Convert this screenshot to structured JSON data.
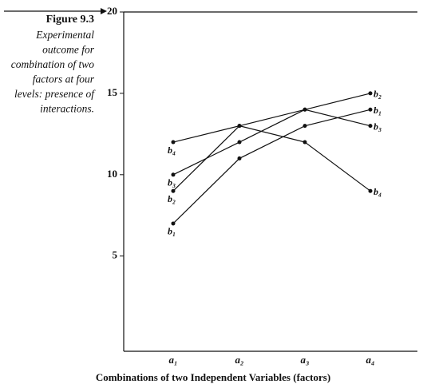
{
  "chart_data": {
    "type": "line",
    "figure_label": "Figure 9.3",
    "caption_lines": [
      "Experimental",
      "outcome for",
      "combination of two",
      "factors at four",
      "levels: presence of",
      "interactions."
    ],
    "xlabel": "Combinations of two Independent Variables (factors)",
    "categories": [
      "a₁",
      "a₂",
      "a₃",
      "a₄"
    ],
    "series": [
      {
        "name": "b₁",
        "color": "#111111",
        "values": [
          7,
          11,
          13,
          14
        ]
      },
      {
        "name": "b₂",
        "color": "#111111",
        "values": [
          9,
          13,
          14,
          15
        ]
      },
      {
        "name": "b₃",
        "color": "#111111",
        "values": [
          10,
          12,
          14,
          13
        ]
      },
      {
        "name": "b₄",
        "color": "#111111",
        "values": [
          12,
          13,
          12,
          9
        ]
      }
    ],
    "ylim": [
      -1,
      20
    ],
    "yticks": [
      5,
      10,
      15,
      20
    ],
    "grid": false
  }
}
